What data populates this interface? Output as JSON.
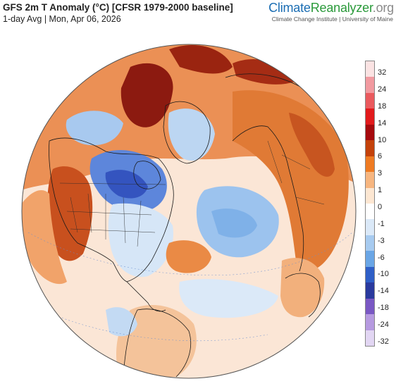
{
  "header": {
    "title": "GFS 2m T Anomaly (°C) [CFSR 1979-2000 baseline]",
    "subtitle": "1-day Avg | Mon, Apr 06, 2026"
  },
  "brand": {
    "part1": "Climate",
    "part2": "Reanalyzer",
    "part3": ".org",
    "sub": "Climate Change Institute | University of Maine"
  },
  "legend": {
    "labels": [
      "32",
      "24",
      "18",
      "14",
      "10",
      "6",
      "3",
      "1",
      "0",
      "-1",
      "-3",
      "-6",
      "-10",
      "-14",
      "-18",
      "-24",
      "-32"
    ],
    "colors": [
      "#fbe3e3",
      "#f29aa0",
      "#ea5a5e",
      "#e21a1c",
      "#a60a0e",
      "#c4420a",
      "#ef7b22",
      "#f7b680",
      "#fde7d2",
      "#ffffff",
      "#dbe9f8",
      "#a7cbf0",
      "#6aa6e6",
      "#2f5fc7",
      "#2a3a9e",
      "#7a58c4",
      "#b69ae0",
      "#e2d6f3"
    ],
    "colors_note": ""
  },
  "palette": {
    "ocean_warm": "#f6c29a",
    "ocean_neutral": "#fbe9dc",
    "cool": "#b9d6f3",
    "cold": "#5c86dc",
    "very_cold": "#2f4fb8",
    "hot": "#b5361a",
    "very_hot": "#8c1610",
    "warm": "#e5812f"
  }
}
